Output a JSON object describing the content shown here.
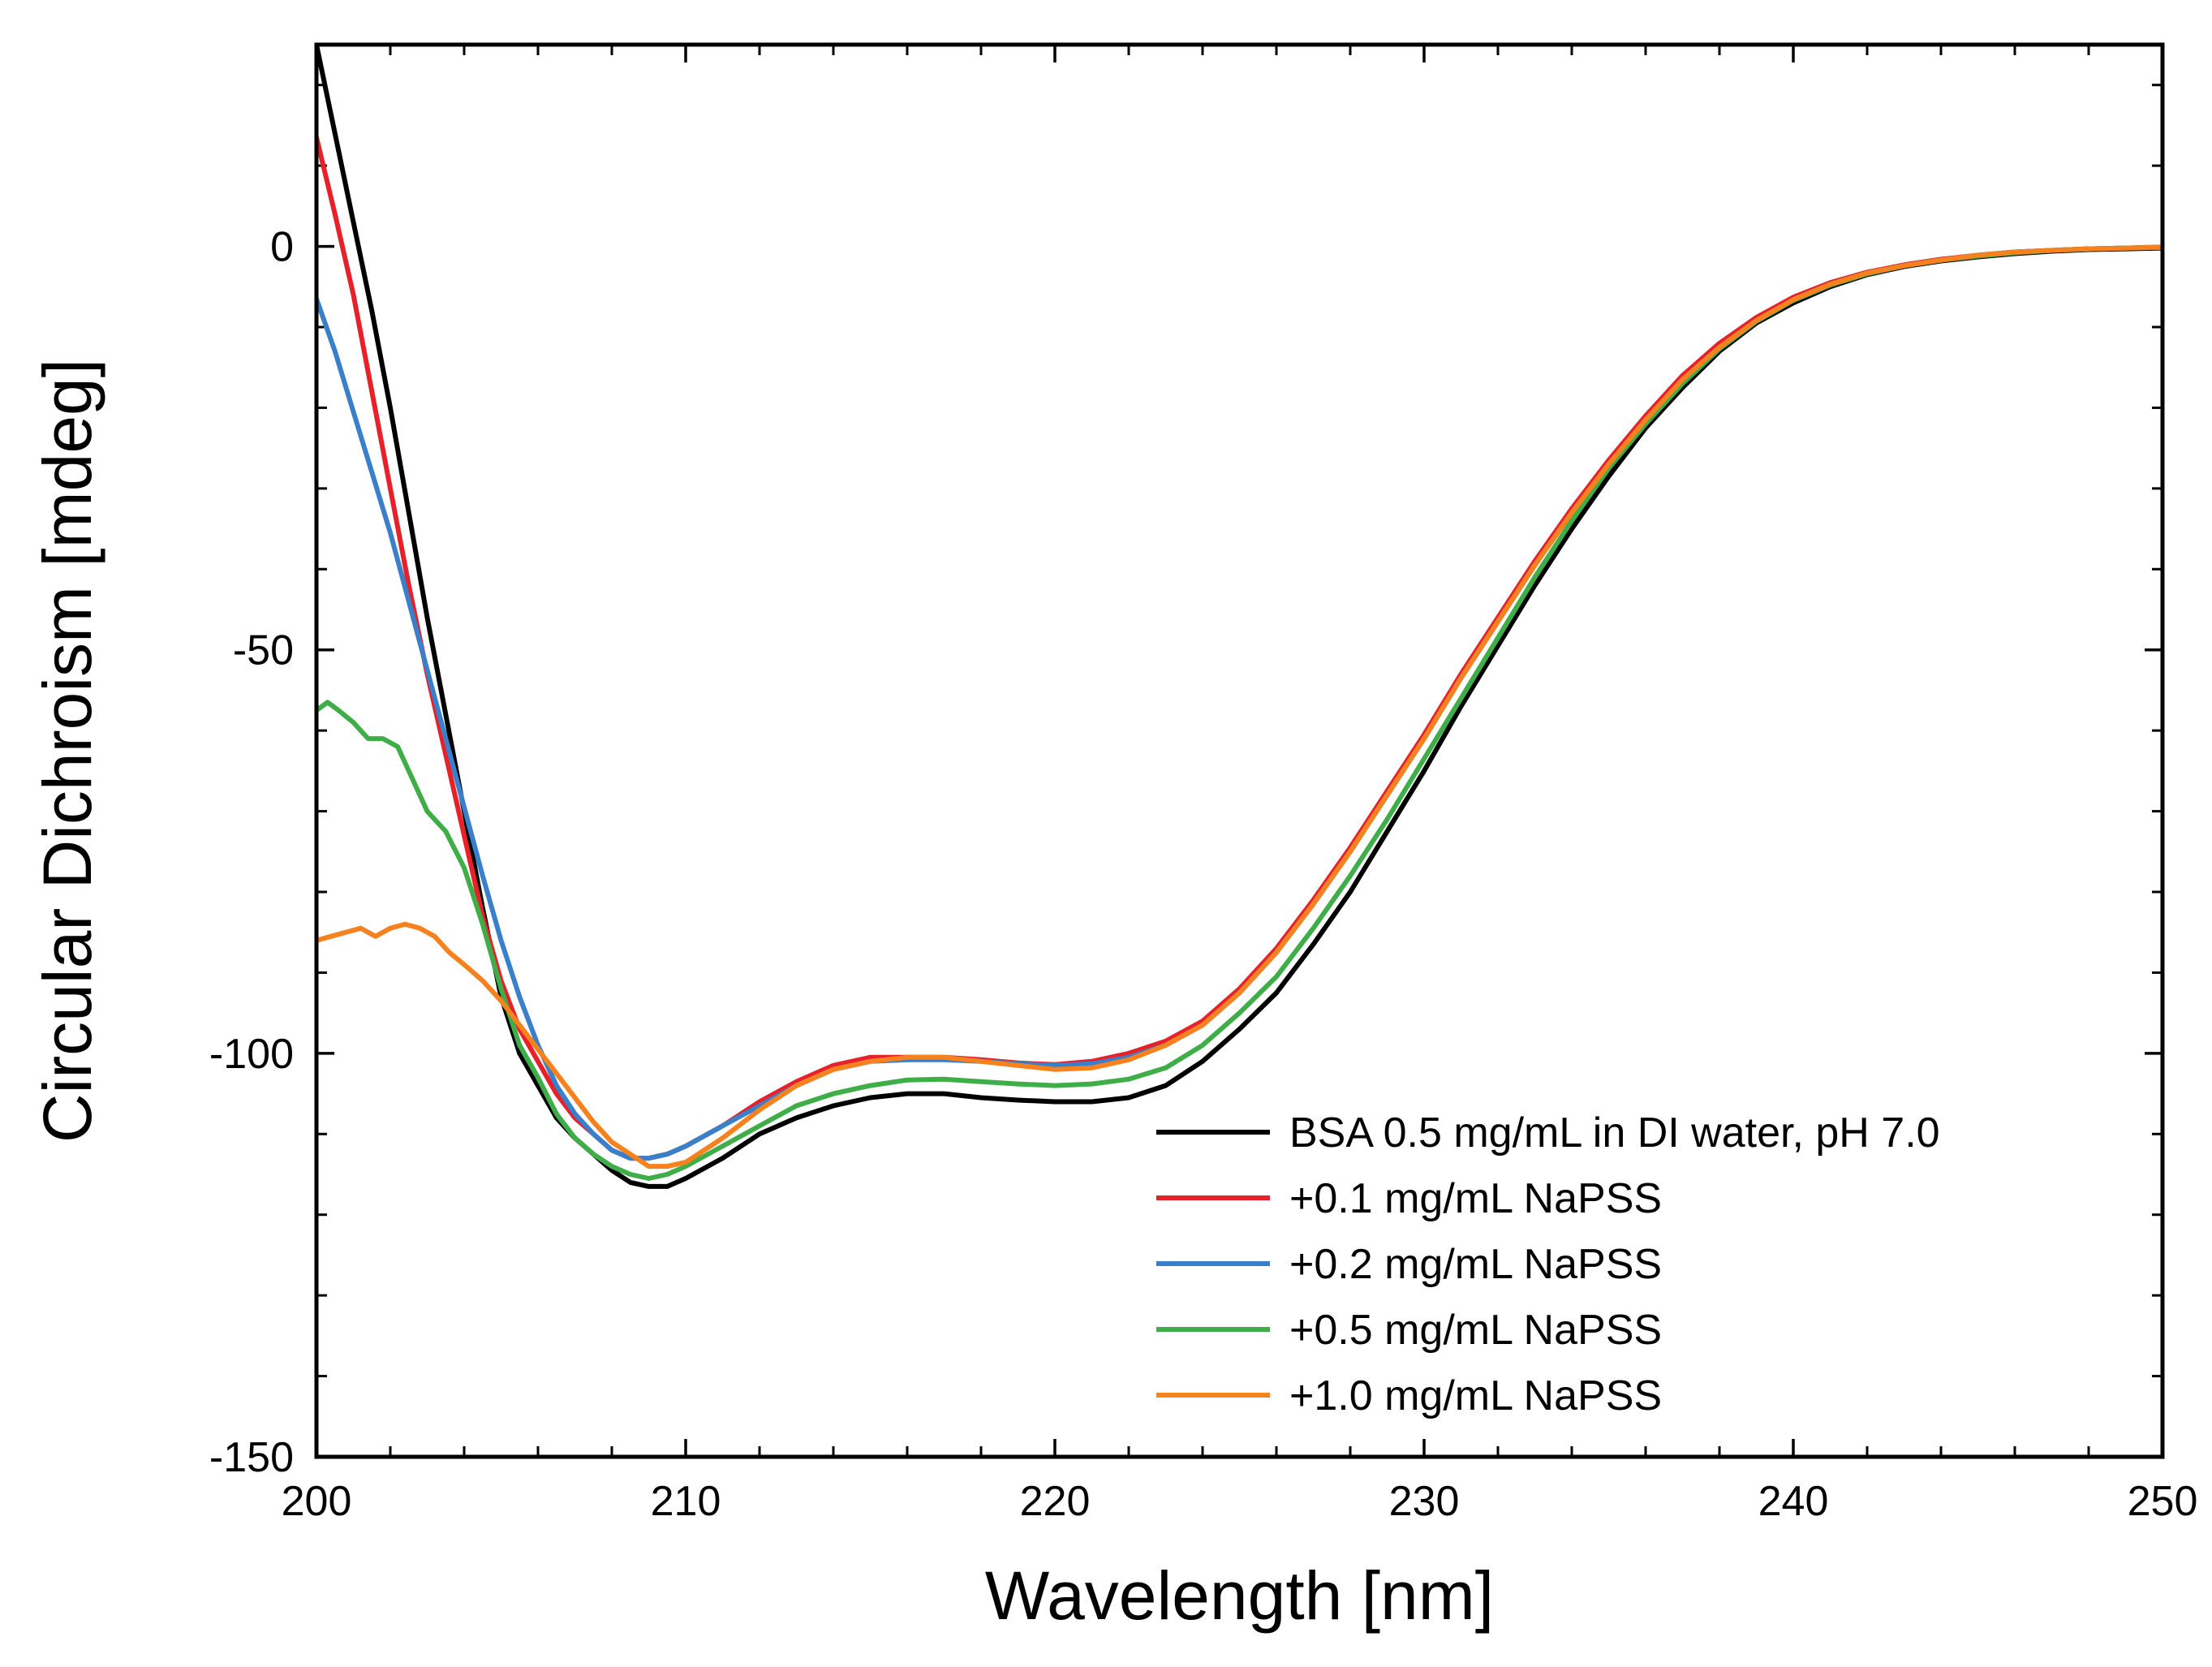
{
  "chart_data": {
    "type": "line",
    "title": "",
    "xlabel": "Wavelength [nm]",
    "ylabel": "Circular Dichroism [mdeg]",
    "xlim": [
      200,
      250
    ],
    "ylim": [
      -150,
      25
    ],
    "xticks": [
      200,
      210,
      220,
      230,
      240,
      250
    ],
    "xtick_labels": [
      "200",
      "210",
      "220",
      "230",
      "240",
      "250"
    ],
    "yticks": [
      0,
      -50,
      -100,
      -150
    ],
    "ytick_labels": [
      "0",
      "-50",
      "-100",
      "-150"
    ],
    "x_minor_step": 2,
    "y_minor_step": 10,
    "grid": false,
    "legend_position": "bottom-right",
    "series": [
      {
        "name": "BSA 0.5 mg/mL in DI water, pH 7.0",
        "color": "#000000",
        "x": [
          200,
          200.5,
          201,
          201.5,
          202,
          202.5,
          203,
          203.5,
          204,
          204.5,
          205,
          205.5,
          206,
          206.5,
          207,
          207.5,
          208,
          208.5,
          209,
          209.5,
          210,
          211,
          212,
          213,
          214,
          215,
          216,
          217,
          218,
          219,
          220,
          221,
          222,
          223,
          224,
          225,
          226,
          227,
          228,
          229,
          230,
          231,
          232,
          233,
          234,
          235,
          236,
          237,
          238,
          239,
          240,
          241,
          242,
          243,
          244,
          245,
          246,
          247,
          248,
          249,
          250
        ],
        "y": [
          25,
          14,
          3,
          -8,
          -20,
          -33,
          -46,
          -58,
          -70,
          -82,
          -93,
          -100,
          -104,
          -108,
          -110.5,
          -112.5,
          -114.5,
          -116,
          -116.5,
          -116.5,
          -115.5,
          -113,
          -110,
          -108,
          -106.5,
          -105.5,
          -105,
          -105,
          -105.5,
          -105.8,
          -106,
          -106,
          -105.5,
          -104,
          -101,
          -97,
          -92.5,
          -86.5,
          -80,
          -72.5,
          -65,
          -57,
          -49.5,
          -42,
          -35,
          -28.5,
          -22.5,
          -17.5,
          -13,
          -9.5,
          -7,
          -5,
          -3.5,
          -2.5,
          -1.8,
          -1.3,
          -0.9,
          -0.6,
          -0.4,
          -0.3,
          -0.2
        ]
      },
      {
        "name": "+0.1 mg/mL NaPSS",
        "color": "#e8202a",
        "x": [
          200,
          200.5,
          201,
          201.5,
          202,
          202.5,
          203,
          203.5,
          204,
          204.5,
          205,
          205.5,
          206,
          206.5,
          207,
          207.5,
          208,
          208.5,
          209,
          209.5,
          210,
          211,
          212,
          213,
          214,
          215,
          216,
          217,
          218,
          219,
          220,
          221,
          222,
          223,
          224,
          225,
          226,
          227,
          228,
          229,
          230,
          231,
          232,
          233,
          234,
          235,
          236,
          237,
          238,
          239,
          240,
          241,
          242,
          243,
          244,
          245,
          246,
          247,
          248,
          249,
          250
        ],
        "y": [
          13.5,
          4,
          -6,
          -18,
          -30,
          -42,
          -53,
          -63,
          -73,
          -83,
          -91,
          -97,
          -101,
          -105,
          -108,
          -110,
          -112,
          -113,
          -113,
          -112.5,
          -111.5,
          -109,
          -106,
          -103.5,
          -101.5,
          -100.5,
          -100.5,
          -100.5,
          -100.8,
          -101.2,
          -101.4,
          -101,
          -100,
          -98.5,
          -96,
          -92,
          -87,
          -81,
          -74.5,
          -67.5,
          -60.5,
          -53,
          -46,
          -39,
          -32.5,
          -26.5,
          -21,
          -16,
          -12,
          -8.8,
          -6.3,
          -4.5,
          -3.2,
          -2.3,
          -1.6,
          -1.1,
          -0.7,
          -0.5,
          -0.3,
          -0.2,
          -0.1
        ]
      },
      {
        "name": "+0.2 mg/mL NaPSS",
        "color": "#3a7fc9",
        "x": [
          200,
          200.5,
          201,
          201.5,
          202,
          202.5,
          203,
          203.5,
          204,
          204.5,
          205,
          205.5,
          206,
          206.5,
          207,
          207.5,
          208,
          208.5,
          209,
          209.5,
          210,
          211,
          212,
          213,
          214,
          215,
          216,
          217,
          218,
          219,
          220,
          221,
          222,
          223,
          224,
          225,
          226,
          227,
          228,
          229,
          230,
          231,
          232,
          233,
          234,
          235,
          236,
          237,
          238,
          239,
          240,
          241,
          242,
          243,
          244,
          245,
          246,
          247,
          248,
          249,
          250
        ],
        "y": [
          -6.5,
          -13,
          -20.5,
          -28,
          -35.5,
          -44,
          -52.5,
          -61,
          -69.5,
          -78,
          -86,
          -93,
          -99,
          -104,
          -107.5,
          -110,
          -112,
          -113,
          -113,
          -112.5,
          -111.5,
          -109,
          -106.5,
          -104,
          -102,
          -101,
          -100.8,
          -100.8,
          -101,
          -101.3,
          -101.5,
          -101.3,
          -100.5,
          -99,
          -96.5,
          -92.5,
          -87.5,
          -81.5,
          -75,
          -68,
          -61,
          -53.5,
          -46.5,
          -39.5,
          -33,
          -27,
          -21.5,
          -16.5,
          -12.5,
          -9.2,
          -6.6,
          -4.7,
          -3.3,
          -2.4,
          -1.7,
          -1.1,
          -0.7,
          -0.5,
          -0.3,
          -0.2,
          -0.1
        ]
      },
      {
        "name": "+0.5 mg/mL NaPSS",
        "color": "#3fae49",
        "x": [
          200,
          200.3,
          200.6,
          201,
          201.4,
          201.8,
          202.2,
          202.6,
          203,
          203.5,
          204,
          204.5,
          205,
          205.5,
          206,
          206.5,
          207,
          207.5,
          208,
          208.5,
          209,
          209.5,
          210,
          211,
          212,
          213,
          214,
          215,
          216,
          217,
          218,
          219,
          220,
          221,
          222,
          223,
          224,
          225,
          226,
          227,
          228,
          229,
          230,
          231,
          232,
          233,
          234,
          235,
          236,
          237,
          238,
          239,
          240,
          241,
          242,
          243,
          244,
          245,
          246,
          247,
          248,
          249,
          250
        ],
        "y": [
          -57.5,
          -56.5,
          -57.5,
          -59,
          -61,
          -61,
          -62,
          -66,
          -70,
          -72.5,
          -77,
          -84,
          -92,
          -99,
          -103,
          -107.5,
          -110.5,
          -112.5,
          -114,
          -115,
          -115.5,
          -115,
          -114,
          -111.5,
          -109,
          -106.5,
          -105,
          -104,
          -103.3,
          -103.2,
          -103.5,
          -103.8,
          -104,
          -103.8,
          -103.2,
          -101.8,
          -99,
          -95,
          -90.5,
          -84.5,
          -78,
          -71,
          -63.5,
          -56,
          -48.5,
          -41,
          -34,
          -27.5,
          -22,
          -17,
          -12.7,
          -9.3,
          -6.7,
          -4.8,
          -3.4,
          -2.4,
          -1.7,
          -1.2,
          -0.8,
          -0.5,
          -0.3,
          -0.2,
          -0.1
        ]
      },
      {
        "name": "+1.0 mg/mL NaPSS",
        "color": "#f5821f",
        "x": [
          200,
          200.4,
          200.8,
          201.2,
          201.6,
          202,
          202.4,
          202.8,
          203.2,
          203.6,
          204,
          204.5,
          205,
          205.5,
          206,
          206.5,
          207,
          207.5,
          208,
          208.5,
          209,
          209.5,
          210,
          211,
          212,
          213,
          214,
          215,
          216,
          217,
          218,
          219,
          220,
          221,
          222,
          223,
          224,
          225,
          226,
          227,
          228,
          229,
          230,
          231,
          232,
          233,
          234,
          235,
          236,
          237,
          238,
          239,
          240,
          241,
          242,
          243,
          244,
          245,
          246,
          247,
          248,
          249,
          250
        ],
        "y": [
          -86,
          -85.5,
          -85,
          -84.5,
          -85.5,
          -84.5,
          -84,
          -84.5,
          -85.5,
          -87.5,
          -89,
          -91,
          -93.5,
          -96.5,
          -99.5,
          -102.5,
          -105.5,
          -108.5,
          -111,
          -112.5,
          -114,
          -114,
          -113.5,
          -110.5,
          -107,
          -104,
          -102,
          -101,
          -100.5,
          -100.5,
          -101,
          -101.5,
          -102,
          -101.8,
          -100.8,
          -99,
          -96.5,
          -92.5,
          -87.5,
          -81.5,
          -75,
          -68,
          -61,
          -53.5,
          -46.5,
          -39.5,
          -33,
          -27,
          -21.5,
          -16.5,
          -12.5,
          -9.2,
          -6.6,
          -4.7,
          -3.3,
          -2.4,
          -1.7,
          -1.1,
          -0.7,
          -0.5,
          -0.3,
          -0.2,
          -0.1
        ]
      }
    ]
  }
}
